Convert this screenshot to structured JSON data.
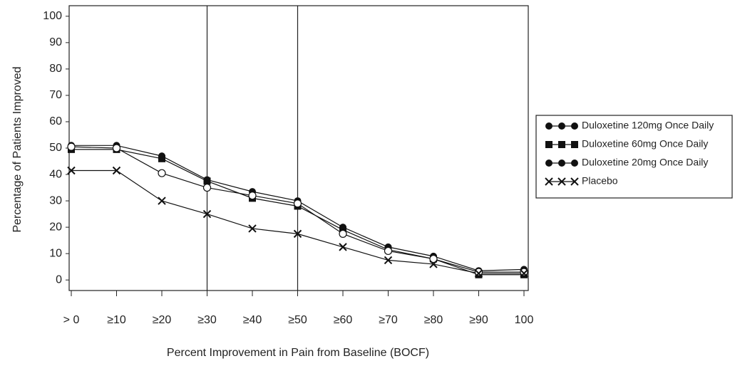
{
  "chart_data": {
    "type": "line",
    "x_label": "Percent Improvement in Pain from Baseline (BOCF)",
    "y_label": "Percentage of Patients Improved",
    "categories": [
      "> 0",
      "≥10",
      "≥20",
      "≥30",
      "≥40",
      "≥50",
      "≥60",
      "≥70",
      "≥80",
      "≥90",
      "100"
    ],
    "series": [
      {
        "name": "Duloxetine 120mg Once Daily",
        "color": "#111111",
        "marker": "circle",
        "values": [
          51,
          51,
          47,
          38,
          33.5,
          30,
          20,
          12.5,
          9,
          3.5,
          4
        ]
      },
      {
        "name": "Duloxetine 60mg Once Daily",
        "color": "#111111",
        "marker": "square",
        "values": [
          49.5,
          49.5,
          46,
          37.5,
          31,
          28,
          19,
          11.5,
          8,
          2,
          2
        ]
      },
      {
        "name": "Duloxetine 20mg Once Daily",
        "color": "#111111",
        "marker": "open-circle",
        "values": [
          50.5,
          50,
          40.5,
          35,
          32,
          29,
          17.5,
          11,
          8,
          3,
          3
        ]
      },
      {
        "name": "Placebo",
        "color": "#111111",
        "marker": "x",
        "values": [
          41.5,
          41.5,
          30,
          25,
          19.5,
          17.5,
          12.5,
          7.5,
          6,
          2.5,
          2.5
        ]
      }
    ],
    "ylim": [
      -4,
      104
    ],
    "yticks": [
      0,
      10,
      20,
      30,
      40,
      50,
      60,
      70,
      80,
      90,
      100
    ],
    "vertical_lines_at": [
      "≥30",
      "≥50"
    ],
    "legend": "right"
  }
}
